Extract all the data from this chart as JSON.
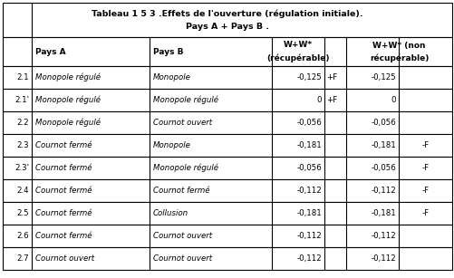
{
  "title_line1": "Tableau 1 5 3 .Effets de l'ouverture (régulation initiale).",
  "title_line2": "Pays A + Pays B .",
  "rows": [
    {
      "id": "2.1",
      "paysA": "Monopole régulé",
      "paysB": "Monopole",
      "recup": "-0,125",
      "recup2": "+F",
      "nonrecup": "-0,125",
      "nonrecup2": ""
    },
    {
      "id": "2.1'",
      "paysA": "Monopole régulé",
      "paysB": "Monopole régulé",
      "recup": "0",
      "recup2": "+F",
      "nonrecup": "0",
      "nonrecup2": ""
    },
    {
      "id": "2.2",
      "paysA": "Monopole régulé",
      "paysB": "Cournot ouvert",
      "recup": "-0,056",
      "recup2": "",
      "nonrecup": "-0,056",
      "nonrecup2": ""
    },
    {
      "id": "2.3",
      "paysA": "Cournot fermé",
      "paysB": "Monopole",
      "recup": "-0,181",
      "recup2": "",
      "nonrecup": "-0,181",
      "nonrecup2": "-F"
    },
    {
      "id": "2.3'",
      "paysA": "Cournot fermé",
      "paysB": "Monopole régulé",
      "recup": "-0,056",
      "recup2": "",
      "nonrecup": "-0,056",
      "nonrecup2": "-F"
    },
    {
      "id": "2.4",
      "paysA": "Cournot fermé",
      "paysB": "Cournot fermé",
      "recup": "-0,112",
      "recup2": "",
      "nonrecup": "-0,112",
      "nonrecup2": "-F"
    },
    {
      "id": "2.5",
      "paysA": "Cournot fermé",
      "paysB": "Collusion",
      "recup": "-0,181",
      "recup2": "",
      "nonrecup": "-0,181",
      "nonrecup2": "-F"
    },
    {
      "id": "2.6",
      "paysA": "Cournot fermé",
      "paysB": "Cournot ouvert",
      "recup": "-0,112",
      "recup2": "",
      "nonrecup": "-0,112",
      "nonrecup2": ""
    },
    {
      "id": "2.7",
      "paysA": "Cournot ouvert",
      "paysB": "Cournot ouvert",
      "recup": "-0,112",
      "recup2": "",
      "nonrecup": "-0,112",
      "nonrecup2": ""
    }
  ],
  "bg_color": "#ffffff",
  "font_size_title": 6.8,
  "font_size_header": 6.5,
  "font_size_data": 6.2
}
